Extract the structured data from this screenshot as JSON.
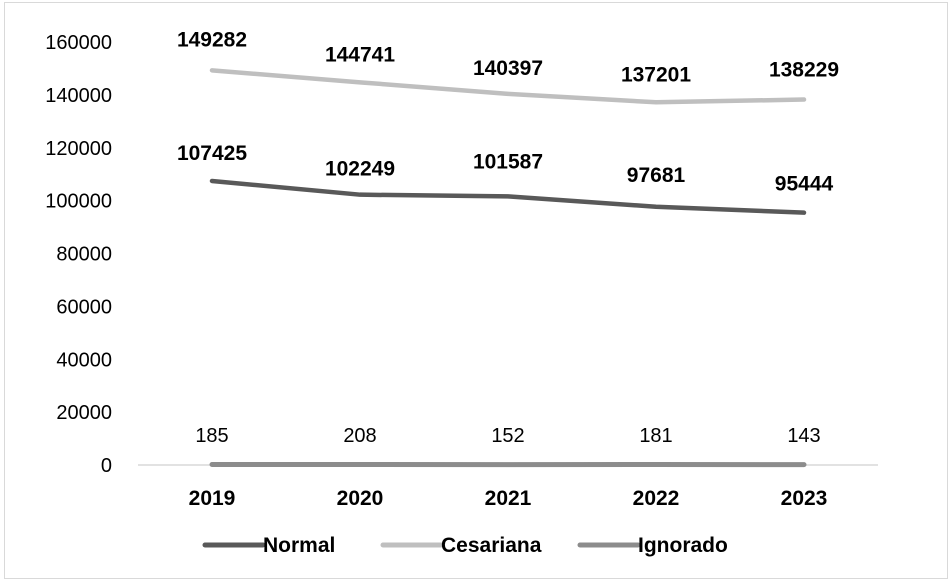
{
  "chart_data": {
    "type": "line",
    "title": "",
    "xlabel": "",
    "ylabel": "",
    "categories": [
      "2019",
      "2020",
      "2021",
      "2022",
      "2023"
    ],
    "ylim": [
      0,
      160000
    ],
    "yticks": [
      "0",
      "20000",
      "40000",
      "60000",
      "80000",
      "100000",
      "120000",
      "140000",
      "160000"
    ],
    "grid": false,
    "legend_position": "bottom",
    "series": [
      {
        "name": "Normal",
        "color": "#595959",
        "label_style": "bold",
        "label_position": "above",
        "values": [
          107425,
          102249,
          101587,
          97681,
          95444
        ],
        "labels": [
          "107425",
          "102249",
          "101587",
          "97681",
          "95444"
        ]
      },
      {
        "name": "Cesariana",
        "color": "#bfbfbf",
        "label_style": "bold",
        "label_position": "above",
        "values": [
          149282,
          144741,
          140397,
          137201,
          138229
        ],
        "labels": [
          "149282",
          "144741",
          "140397",
          "137201",
          "138229"
        ]
      },
      {
        "name": "Ignorado",
        "color": "#8c8c8c",
        "label_style": "normal",
        "label_position": "above",
        "values": [
          185,
          208,
          152,
          181,
          143
        ],
        "labels": [
          "185",
          "208",
          "152",
          "181",
          "143"
        ]
      }
    ]
  }
}
